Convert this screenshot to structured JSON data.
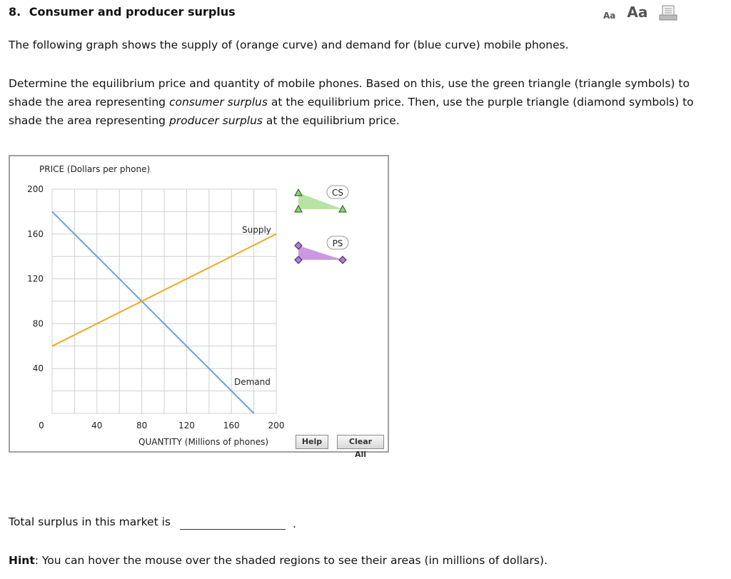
{
  "question": {
    "number": "8.",
    "title": "Consumer and producer surplus",
    "paragraph1": "The following graph shows the supply of (orange curve) and demand for (blue curve) mobile phones.",
    "paragraph2_part1": "Determine the equilibrium price and quantity of mobile phones. Based on this, use the green triangle (triangle symbols) to shade the area representing ",
    "paragraph2_em1": "consumer surplus",
    "paragraph2_part2": " at the equilibrium price. Then, use the purple triangle (diamond symbols) to shade the area representing ",
    "paragraph2_em2": "producer surplus",
    "paragraph2_part3": " at the equilibrium price."
  },
  "toolbar": {
    "font_small_label": "Aa",
    "font_large_label": "Aa",
    "print_icon": "print-icon"
  },
  "colors": {
    "supply": "#f5a623",
    "demand": "#6fa0cf",
    "cs_fill": "#b7e4a3",
    "ps_fill": "#cc99e0",
    "grid": "#d0d0d0"
  },
  "chart_data": {
    "type": "line",
    "ylabel": "PRICE (Dollars per phone)",
    "xlabel": "QUANTITY (Millions of phones)",
    "xlim": [
      0,
      200
    ],
    "ylim": [
      0,
      200
    ],
    "x_ticks": [
      "0",
      "40",
      "80",
      "120",
      "160",
      "200"
    ],
    "y_ticks": [
      "0",
      "40",
      "80",
      "120",
      "160",
      "200"
    ],
    "grid": true,
    "series": [
      {
        "name": "Supply",
        "points": [
          [
            0,
            60
          ],
          [
            200,
            160
          ]
        ]
      },
      {
        "name": "Demand",
        "points": [
          [
            0,
            180
          ],
          [
            180,
            0
          ]
        ]
      }
    ],
    "tools": [
      {
        "label": "CS",
        "symbol": "triangle",
        "color": "green"
      },
      {
        "label": "PS",
        "symbol": "diamond",
        "color": "purple"
      }
    ]
  },
  "buttons": {
    "help": "Help",
    "clear_all": "Clear All"
  },
  "footer": {
    "total_surplus_text": "Total surplus in this market is",
    "period": ".",
    "hint_label": "Hint",
    "hint_text": ": You can hover the mouse over the shaded regions to see their areas (in millions of dollars)."
  }
}
